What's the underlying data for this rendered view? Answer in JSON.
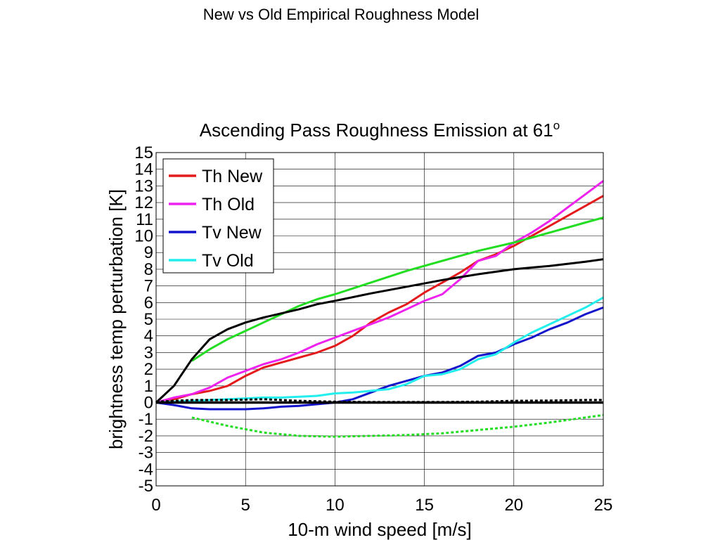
{
  "slide_title": "New vs Old Empirical Roughness Model",
  "chart_data": {
    "type": "line",
    "title": "Ascending Pass Roughness Emission at 61",
    "title_superscript": "o",
    "xlabel": "10-m wind speed [m/s]",
    "ylabel": "brightness temp perturbation [K]",
    "xlim": [
      0,
      25
    ],
    "ylim": [
      -5,
      15
    ],
    "xticks": [
      "0",
      "5",
      "10",
      "15",
      "20",
      "25"
    ],
    "yticks": [
      "15",
      "14",
      "13",
      "12",
      "11",
      "10",
      "9",
      "8",
      "7",
      "6",
      "5",
      "4",
      "3",
      "2",
      "1",
      "0",
      "-1",
      "-2",
      "-3",
      "-4",
      "-5"
    ],
    "grid": true,
    "legend_position": "top-left",
    "series": [
      {
        "name": "Th New",
        "color": "#e41a1c",
        "style": "solid",
        "width": 3,
        "x": [
          0,
          1,
          2,
          3,
          4,
          5,
          6,
          7,
          8,
          9,
          10,
          11,
          12,
          13,
          14,
          15,
          16,
          17,
          18,
          19,
          20,
          21,
          22,
          23,
          24,
          25
        ],
        "y": [
          0,
          0.2,
          0.5,
          0.7,
          1.0,
          1.6,
          2.1,
          2.4,
          2.7,
          3.0,
          3.4,
          4.0,
          4.8,
          5.4,
          5.9,
          6.6,
          7.2,
          7.8,
          8.5,
          8.9,
          9.4,
          10.0,
          10.6,
          11.2,
          11.8,
          12.4
        ]
      },
      {
        "name": "Th Old",
        "color": "#ee22ee",
        "style": "solid",
        "width": 3,
        "x": [
          0,
          1,
          2,
          3,
          4,
          5,
          6,
          7,
          8,
          9,
          10,
          11,
          12,
          13,
          14,
          15,
          16,
          17,
          18,
          19,
          20,
          21,
          22,
          23,
          24,
          25
        ],
        "y": [
          0,
          0.3,
          0.5,
          0.9,
          1.5,
          1.9,
          2.3,
          2.6,
          3.0,
          3.5,
          3.9,
          4.3,
          4.7,
          5.1,
          5.6,
          6.1,
          6.5,
          7.4,
          8.5,
          8.8,
          9.6,
          10.2,
          10.9,
          11.7,
          12.5,
          13.3
        ]
      },
      {
        "name": "Tv New",
        "color": "#1414cc",
        "style": "solid",
        "width": 3,
        "x": [
          0,
          1,
          2,
          3,
          4,
          5,
          6,
          7,
          8,
          9,
          10,
          11,
          12,
          13,
          14,
          15,
          16,
          17,
          18,
          19,
          20,
          21,
          22,
          23,
          24,
          25
        ],
        "y": [
          0,
          -0.15,
          -0.35,
          -0.4,
          -0.4,
          -0.4,
          -0.35,
          -0.25,
          -0.2,
          -0.1,
          0,
          0.2,
          0.6,
          1.0,
          1.3,
          1.6,
          1.8,
          2.2,
          2.8,
          3.0,
          3.5,
          3.9,
          4.4,
          4.8,
          5.3,
          5.7
        ]
      },
      {
        "name": "Tv Old",
        "color": "#22eeee",
        "style": "solid",
        "width": 3,
        "x": [
          0,
          1,
          2,
          3,
          4,
          5,
          6,
          7,
          8,
          9,
          10,
          11,
          12,
          13,
          14,
          15,
          16,
          17,
          18,
          19,
          20,
          21,
          22,
          23,
          24,
          25
        ],
        "y": [
          0,
          0.05,
          0.1,
          0.15,
          0.2,
          0.25,
          0.3,
          0.3,
          0.35,
          0.4,
          0.55,
          0.6,
          0.7,
          0.8,
          1.1,
          1.6,
          1.7,
          2.0,
          2.6,
          2.9,
          3.6,
          4.2,
          4.7,
          5.2,
          5.7,
          6.3
        ]
      },
      {
        "color": "#22dd22",
        "style": "solid",
        "width": 3,
        "x": [
          2,
          3,
          4,
          5,
          6,
          7,
          8,
          9,
          10,
          12,
          14,
          16,
          18,
          20,
          22,
          24,
          25
        ],
        "y": [
          2.5,
          3.2,
          3.8,
          4.3,
          4.8,
          5.3,
          5.8,
          6.2,
          6.5,
          7.2,
          7.9,
          8.5,
          9.1,
          9.6,
          10.2,
          10.8,
          11.1
        ]
      },
      {
        "color": "#000000",
        "style": "solid",
        "width": 3,
        "x": [
          0,
          1,
          2,
          3,
          4,
          5,
          6,
          7,
          8,
          9,
          10,
          12,
          14,
          16,
          18,
          20,
          22,
          24,
          25
        ],
        "y": [
          0,
          1.0,
          2.6,
          3.8,
          4.4,
          4.8,
          5.1,
          5.35,
          5.6,
          5.9,
          6.1,
          6.55,
          6.95,
          7.35,
          7.7,
          8.0,
          8.2,
          8.45,
          8.6
        ]
      },
      {
        "color": "#22dd22",
        "style": "dashed",
        "width": 3,
        "x": [
          2,
          4,
          6,
          8,
          10,
          12,
          14,
          16,
          18,
          20,
          22,
          24,
          25
        ],
        "y": [
          -0.9,
          -1.4,
          -1.8,
          -2.0,
          -2.05,
          -2.0,
          -1.95,
          -1.85,
          -1.65,
          -1.45,
          -1.2,
          -0.9,
          -0.75
        ]
      },
      {
        "color": "#000000",
        "style": "dashed",
        "width": 3,
        "x": [
          0,
          2,
          4,
          6,
          8,
          10,
          12,
          14,
          16,
          18,
          20,
          22,
          24,
          25
        ],
        "y": [
          0.05,
          0.15,
          0.15,
          0.2,
          0.1,
          0.05,
          0.03,
          0.03,
          0.03,
          0.05,
          0.1,
          0.12,
          0.15,
          0.15
        ]
      },
      {
        "color": "#000000",
        "style": "solid",
        "width": 3.5,
        "x": [
          0,
          25
        ],
        "y": [
          0,
          0
        ]
      }
    ]
  }
}
